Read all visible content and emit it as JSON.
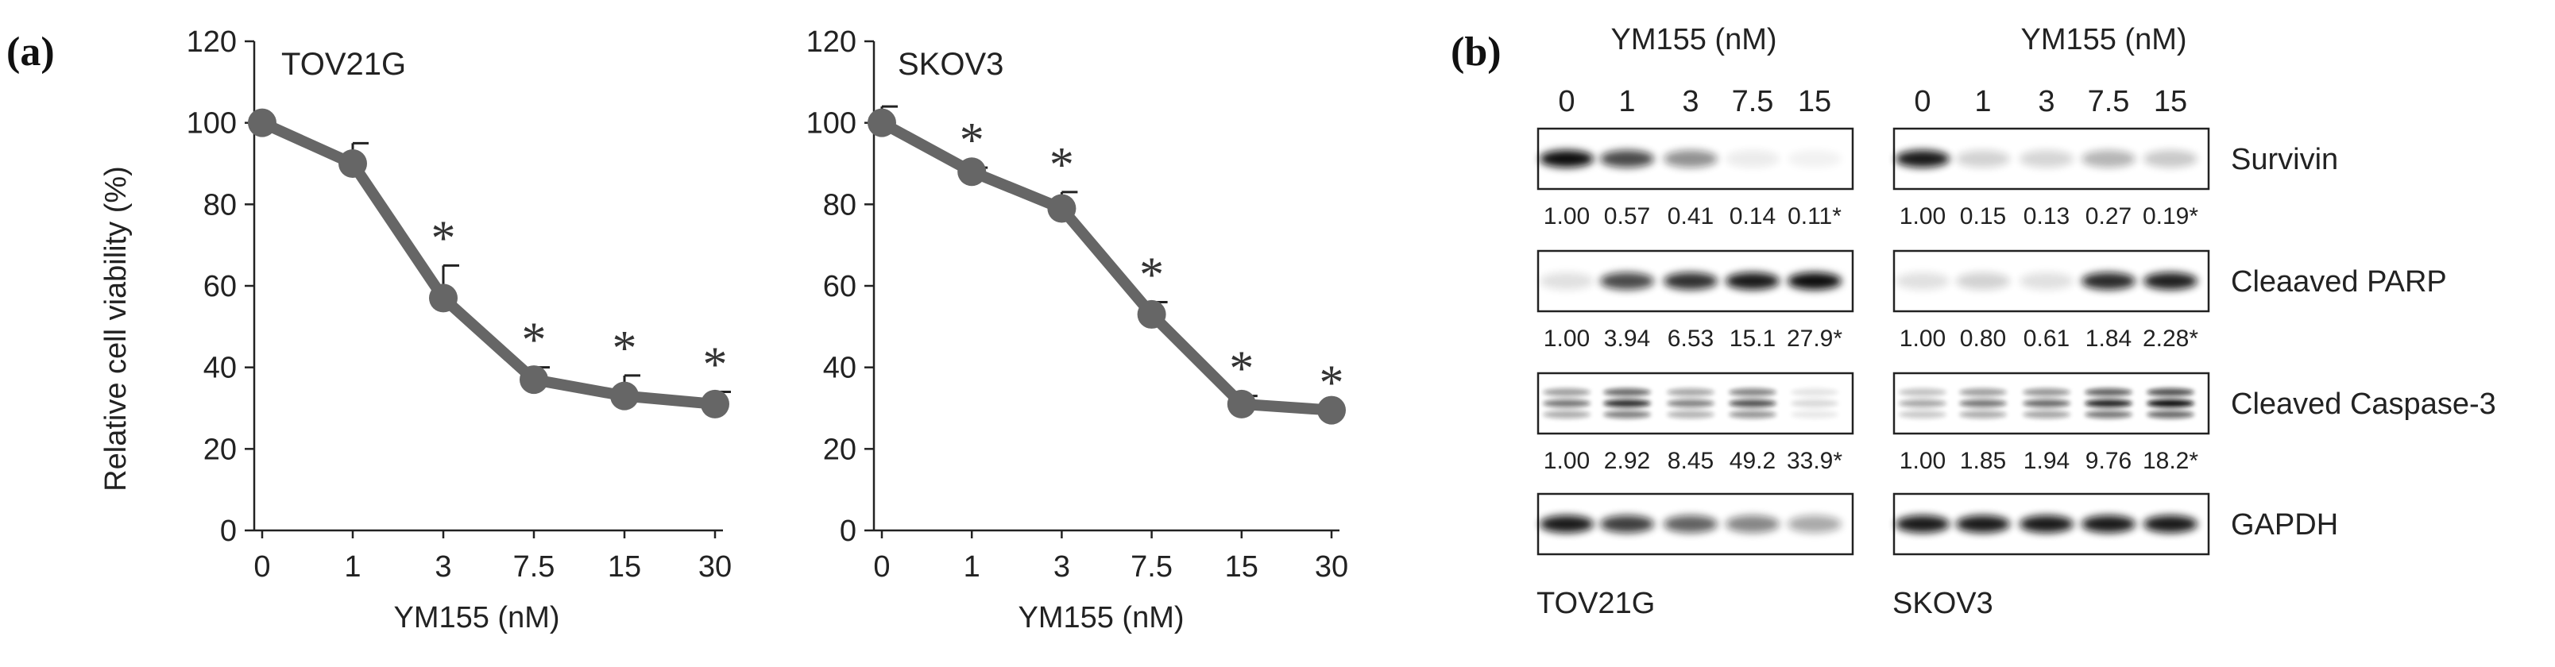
{
  "panel_labels": {
    "a": "(a)",
    "b": "(b)"
  },
  "colors": {
    "line": "#666666",
    "axis": "#222222",
    "text": "#222222",
    "band": "#111111"
  },
  "chart_data": [
    {
      "type": "line",
      "title": "TOV21G",
      "xlabel": "YM155 (nM)",
      "ylabel": "Relative cell viability (%)",
      "categories": [
        "0",
        "1",
        "3",
        "7.5",
        "15",
        "30"
      ],
      "values": [
        100,
        90,
        57,
        37,
        33,
        31
      ],
      "errors": [
        0,
        5,
        8,
        3,
        5,
        3
      ],
      "significance": [
        "",
        "",
        "*",
        "*",
        "*",
        "*"
      ],
      "yticks": [
        "0",
        "20",
        "40",
        "60",
        "80",
        "100",
        "120"
      ],
      "ylim": [
        0,
        120
      ]
    },
    {
      "type": "line",
      "title": "SKOV3",
      "xlabel": "YM155 (nM)",
      "ylabel": "",
      "categories": [
        "0",
        "1",
        "3",
        "7.5",
        "15",
        "30"
      ],
      "values": [
        100,
        88,
        79,
        53,
        31,
        29.5
      ],
      "errors": [
        4,
        1,
        4,
        3,
        2,
        0
      ],
      "significance": [
        "",
        "*",
        "*",
        "*",
        "*",
        "*"
      ],
      "yticks": [
        "0",
        "20",
        "40",
        "60",
        "80",
        "100",
        "120"
      ],
      "ylim": [
        0,
        120
      ]
    }
  ],
  "western": {
    "header": "YM155 (nM)",
    "doses": [
      "0",
      "1",
      "3",
      "7.5",
      "15"
    ],
    "cell_lines": [
      "TOV21G",
      "SKOV3"
    ],
    "proteins": [
      {
        "name": "Survivin",
        "quant": [
          [
            "1.00",
            "0.57",
            "0.41",
            "0.14",
            "0.11*"
          ],
          [
            "1.00",
            "0.15",
            "0.13",
            "0.27",
            "0.19*"
          ]
        ],
        "intensity": [
          [
            1.0,
            0.75,
            0.45,
            0.08,
            0.04
          ],
          [
            0.95,
            0.18,
            0.17,
            0.3,
            0.22
          ]
        ]
      },
      {
        "name": "Cleaaved PARP",
        "quant": [
          [
            "1.00",
            "3.94",
            "6.53",
            "15.1",
            "27.9*"
          ],
          [
            "1.00",
            "0.80",
            "0.61",
            "1.84",
            "2.28*"
          ]
        ],
        "intensity": [
          [
            0.12,
            0.75,
            0.85,
            0.95,
            1.0
          ],
          [
            0.12,
            0.18,
            0.12,
            0.88,
            0.92
          ]
        ]
      },
      {
        "name": "Cleaved Caspase-3",
        "quant": [
          [
            "1.00",
            "2.92",
            "8.45",
            "49.2",
            "33.9*"
          ],
          [
            "1.00",
            "1.85",
            "1.94",
            "9.76",
            "18.2*"
          ]
        ],
        "intensity": [
          [
            0.55,
            0.85,
            0.5,
            0.7,
            0.15
          ],
          [
            0.35,
            0.55,
            0.6,
            0.9,
            1.0
          ]
        ]
      },
      {
        "name": "GAPDH",
        "quant": [],
        "intensity": [
          [
            0.95,
            0.8,
            0.65,
            0.5,
            0.35
          ],
          [
            0.95,
            0.95,
            0.95,
            0.95,
            0.95
          ]
        ]
      }
    ]
  }
}
